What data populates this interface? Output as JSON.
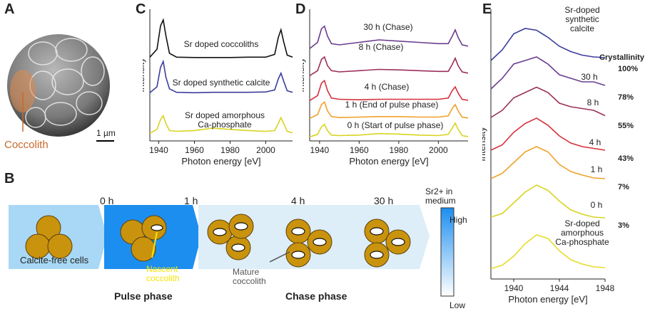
{
  "panels": {
    "a": {
      "label": "A",
      "scale_bar": "1 µm",
      "callout": "Coccolith"
    },
    "b": {
      "label": "B",
      "times": [
        "0 h",
        "1 h",
        "4 h",
        "30 h"
      ],
      "cells_label": "Calcite-free cells",
      "nascent_label": "Nascent coccolith",
      "mature_label": "Mature coccolith",
      "pulse_label": "Pulse phase",
      "chase_label": "Chase phase",
      "sr_title": "Sr2+ in medium",
      "sr_high": "High",
      "sr_low": "Low"
    },
    "c": {
      "label": "C"
    },
    "d": {
      "label": "D"
    },
    "e": {
      "label": "E"
    }
  },
  "chart_data": [
    {
      "panel": "C",
      "type": "line",
      "xlabel": "Photon energy [eV]",
      "ylabel": "Intensity",
      "xlim": [
        1935,
        2015
      ],
      "xticks": [
        1940,
        1960,
        1980,
        2000
      ],
      "series": [
        {
          "name": "Sr doped coccoliths",
          "color": "#111111",
          "x": [
            1935,
            1939,
            1941,
            1942.5,
            1944,
            1946,
            1950,
            1960,
            1970,
            1980,
            1990,
            2000,
            2005,
            2007,
            2008.5,
            2010,
            2012,
            2015
          ],
          "y": [
            0.05,
            0.25,
            0.85,
            1.0,
            0.6,
            0.15,
            0.05,
            0.04,
            0.04,
            0.04,
            0.05,
            0.05,
            0.12,
            0.55,
            0.75,
            0.45,
            0.1,
            0.05
          ]
        },
        {
          "name": "Sr doped synthetic calcite",
          "color": "#3b3d9e",
          "x": [
            1935,
            1939,
            1941,
            1942.5,
            1944,
            1946,
            1950,
            1960,
            1970,
            1980,
            1990,
            2000,
            2005,
            2007,
            2008.5,
            2010,
            2012,
            2015
          ],
          "y": [
            0.05,
            0.2,
            0.7,
            0.85,
            0.45,
            0.15,
            0.06,
            0.05,
            0.06,
            0.06,
            0.06,
            0.07,
            0.12,
            0.4,
            0.55,
            0.35,
            0.1,
            0.06
          ]
        },
        {
          "name": "Sr doped amorphous Ca-phosphate",
          "color": "#d9d420",
          "x": [
            1935,
            1939,
            1941,
            1942.5,
            1944,
            1946,
            1950,
            1960,
            1970,
            1980,
            1990,
            2000,
            2005,
            2007,
            2008.5,
            2010,
            2012,
            2015
          ],
          "y": [
            0.05,
            0.15,
            0.4,
            0.5,
            0.3,
            0.12,
            0.1,
            0.12,
            0.18,
            0.15,
            0.12,
            0.1,
            0.12,
            0.3,
            0.45,
            0.3,
            0.1,
            0.06
          ]
        }
      ]
    },
    {
      "panel": "D",
      "type": "line",
      "xlabel": "Photon energy [eV]",
      "ylabel": "Intensity",
      "xlim": [
        1935,
        2015
      ],
      "xticks": [
        1940,
        1960,
        1980,
        2000
      ],
      "series": [
        {
          "name": "30 h (Chase)",
          "color": "#6a3d8f",
          "x": [
            1935,
            1939,
            1941,
            1942.5,
            1944,
            1946,
            1950,
            1960,
            1970,
            1980,
            1990,
            2000,
            2005,
            2007,
            2008.5,
            2010,
            2012,
            2015
          ],
          "y": [
            0.05,
            0.3,
            0.85,
            0.95,
            0.55,
            0.25,
            0.2,
            0.3,
            0.4,
            0.35,
            0.3,
            0.25,
            0.25,
            0.55,
            0.8,
            0.5,
            0.2,
            0.15
          ]
        },
        {
          "name": "8 h (Chase)",
          "color": "#9b2f5a",
          "x": [
            1935,
            1939,
            1941,
            1942.5,
            1944,
            1946,
            1950,
            1960,
            1970,
            1980,
            1990,
            2000,
            2005,
            2007,
            2008.5,
            2010,
            2012,
            2015
          ],
          "y": [
            0.05,
            0.25,
            0.7,
            0.8,
            0.45,
            0.25,
            0.2,
            0.25,
            0.3,
            0.28,
            0.25,
            0.22,
            0.22,
            0.5,
            0.75,
            0.45,
            0.2,
            0.15
          ]
        },
        {
          "name": "4 h (Chase)",
          "color": "#d6303b",
          "x": [
            1935,
            1939,
            1941,
            1942.5,
            1944,
            1946,
            1950,
            1960,
            1970,
            1980,
            1990,
            2000,
            2005,
            2007,
            2008.5,
            2010,
            2012,
            2015
          ],
          "y": [
            0.05,
            0.25,
            0.75,
            0.85,
            0.45,
            0.15,
            0.1,
            0.08,
            0.1,
            0.1,
            0.1,
            0.1,
            0.15,
            0.45,
            0.6,
            0.35,
            0.1,
            0.06
          ]
        },
        {
          "name": "1 h (End of pulse phase)",
          "color": "#f0a02a",
          "x": [
            1935,
            1939,
            1941,
            1942.5,
            1944,
            1946,
            1950,
            1960,
            1970,
            1980,
            1990,
            2000,
            2005,
            2007,
            2008.5,
            2010,
            2012,
            2015
          ],
          "y": [
            0.05,
            0.2,
            0.6,
            0.7,
            0.35,
            0.12,
            0.08,
            0.1,
            0.12,
            0.12,
            0.1,
            0.1,
            0.15,
            0.45,
            0.6,
            0.35,
            0.1,
            0.06
          ]
        },
        {
          "name": "0 h (Start of pulse phase)",
          "color": "#d9d420",
          "x": [
            1935,
            1939,
            1941,
            1942.5,
            1944,
            1946,
            1950,
            1960,
            1970,
            1980,
            1990,
            2000,
            2005,
            2007,
            2008.5,
            2010,
            2012,
            2015
          ],
          "y": [
            0.05,
            0.15,
            0.45,
            0.55,
            0.3,
            0.12,
            0.1,
            0.12,
            0.18,
            0.16,
            0.12,
            0.1,
            0.15,
            0.4,
            0.6,
            0.35,
            0.1,
            0.06
          ]
        }
      ]
    },
    {
      "panel": "E",
      "type": "line",
      "xlabel": "Photon energy [eV]",
      "ylabel": "Intensity",
      "xlim": [
        1938,
        1948
      ],
      "xticks": [
        1940,
        1944,
        1948
      ],
      "legend_title": "Crystallinity",
      "series": [
        {
          "name": "Sr-doped synthetic calcite",
          "crystallinity": "100%",
          "color": "#3b3d9e",
          "x": [
            1938,
            1939,
            1940,
            1941,
            1942,
            1943,
            1944,
            1945,
            1946,
            1947,
            1948
          ],
          "y": [
            0.1,
            0.4,
            0.85,
            1.0,
            0.95,
            0.75,
            0.5,
            0.35,
            0.25,
            0.2,
            0.18
          ]
        },
        {
          "name": "30 h",
          "crystallinity": "78%",
          "color": "#6a3d8f",
          "x": [
            1938,
            1939,
            1940,
            1941,
            1942,
            1943,
            1944,
            1945,
            1946,
            1947,
            1948
          ],
          "y": [
            0.1,
            0.4,
            0.8,
            0.9,
            1.0,
            0.8,
            0.5,
            0.4,
            0.3,
            0.3,
            0.2
          ]
        },
        {
          "name": "8 h",
          "crystallinity": "55%",
          "color": "#9b2f5a",
          "x": [
            1938,
            1939,
            1940,
            1941,
            1942,
            1943,
            1944,
            1945,
            1946,
            1947,
            1948
          ],
          "y": [
            0.1,
            0.3,
            0.65,
            0.8,
            0.95,
            0.8,
            0.5,
            0.4,
            0.35,
            0.3,
            0.15
          ]
        },
        {
          "name": "4 h",
          "crystallinity": "43%",
          "color": "#d6303b",
          "x": [
            1938,
            1939,
            1940,
            1941,
            1942,
            1943,
            1944,
            1945,
            1946,
            1947,
            1948
          ],
          "y": [
            0.1,
            0.25,
            0.6,
            0.85,
            1.0,
            0.8,
            0.5,
            0.3,
            0.2,
            0.15,
            0.1
          ]
        },
        {
          "name": "1 h",
          "crystallinity": "7%",
          "color": "#f0a02a",
          "x": [
            1938,
            1939,
            1940,
            1941,
            1942,
            1943,
            1944,
            1945,
            1946,
            1947,
            1948
          ],
          "y": [
            0.1,
            0.25,
            0.55,
            0.85,
            1.0,
            0.85,
            0.5,
            0.3,
            0.2,
            0.12,
            0.1
          ]
        },
        {
          "name": "0 h",
          "crystallinity": "3%",
          "color": "#d9d420",
          "x": [
            1938,
            1939,
            1940,
            1941,
            1942,
            1943,
            1944,
            1945,
            1946,
            1947,
            1948
          ],
          "y": [
            0.1,
            0.2,
            0.5,
            0.8,
            1.0,
            0.85,
            0.55,
            0.3,
            0.18,
            0.1,
            0.08
          ]
        },
        {
          "name": "Sr-doped amorphous Ca-phosphate",
          "color": "#e6dc2b",
          "x": [
            1938,
            1939,
            1940,
            1941,
            1942,
            1943,
            1944,
            1945,
            1946,
            1947,
            1948
          ],
          "y": [
            0.05,
            0.15,
            0.4,
            0.75,
            1.0,
            0.9,
            0.55,
            0.3,
            0.18,
            0.1,
            0.08
          ]
        }
      ]
    }
  ]
}
